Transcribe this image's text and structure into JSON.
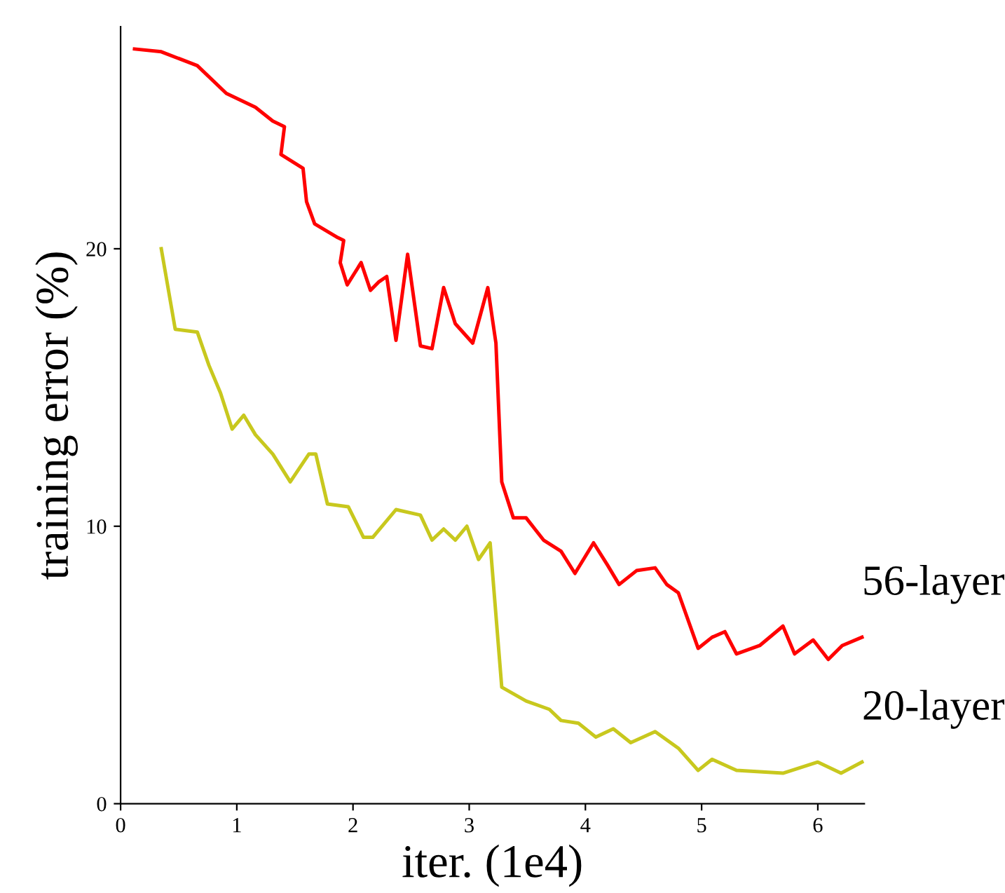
{
  "chart_data": {
    "type": "line",
    "xlabel": "iter. (1e4)",
    "ylabel": "training error (%)",
    "xlim": [
      0,
      6.4
    ],
    "xticks": [
      0,
      1,
      2,
      3,
      4,
      5,
      6
    ],
    "ylim": [
      0,
      28
    ],
    "yticks": [
      0,
      10,
      20
    ],
    "grid": false,
    "legend": false,
    "marker": "none",
    "line_style": "solid",
    "series": [
      {
        "name": "56-layer",
        "color": "#ff0000",
        "x": [
          0.12,
          0.35,
          0.66,
          0.91,
          1.16,
          1.31,
          1.41,
          1.38,
          1.57,
          1.6,
          1.67,
          1.87,
          1.92,
          1.89,
          1.95,
          2.07,
          2.15,
          2.22,
          2.29,
          2.37,
          2.47,
          2.58,
          2.68,
          2.78,
          2.88,
          3.03,
          3.16,
          3.23,
          3.28,
          3.38,
          3.49,
          3.64,
          3.79,
          3.91,
          4.07,
          4.19,
          4.29,
          4.44,
          4.6,
          4.7,
          4.8,
          4.97,
          5.09,
          5.2,
          5.3,
          5.5,
          5.7,
          5.8,
          5.96,
          6.09,
          6.21,
          6.38
        ],
        "values": [
          27.2,
          27.1,
          26.6,
          25.6,
          25.1,
          24.6,
          24.4,
          23.4,
          22.9,
          21.7,
          20.9,
          20.4,
          20.3,
          19.5,
          18.7,
          19.5,
          18.5,
          18.8,
          19.0,
          16.7,
          19.8,
          16.5,
          16.4,
          18.6,
          17.3,
          16.6,
          18.6,
          16.6,
          11.6,
          10.3,
          10.3,
          9.5,
          9.1,
          8.3,
          9.4,
          8.6,
          7.9,
          8.4,
          8.5,
          7.9,
          7.6,
          5.6,
          6.0,
          6.2,
          5.4,
          5.7,
          6.4,
          5.4,
          5.9,
          5.2,
          5.7,
          6.0
        ]
      },
      {
        "name": "20-layer",
        "color": "#c8c81e",
        "x": [
          0.35,
          0.47,
          0.66,
          0.76,
          0.86,
          0.96,
          1.06,
          1.16,
          1.31,
          1.46,
          1.62,
          1.68,
          1.78,
          1.96,
          2.09,
          2.17,
          2.37,
          2.58,
          2.68,
          2.78,
          2.88,
          2.98,
          3.08,
          3.18,
          3.28,
          3.49,
          3.69,
          3.79,
          3.94,
          4.09,
          4.24,
          4.39,
          4.6,
          4.8,
          4.97,
          5.09,
          5.3,
          5.7,
          6.0,
          6.2,
          6.38
        ],
        "values": [
          20,
          17.1,
          17.0,
          15.8,
          14.8,
          13.5,
          14.0,
          13.3,
          12.6,
          11.6,
          12.6,
          12.6,
          10.8,
          10.7,
          9.6,
          9.6,
          10.6,
          10.4,
          9.5,
          9.9,
          9.5,
          10.0,
          8.8,
          9.4,
          4.2,
          3.7,
          3.4,
          3.0,
          2.9,
          2.4,
          2.7,
          2.2,
          2.6,
          2.0,
          1.2,
          1.6,
          1.2,
          1.1,
          1.5,
          1.1,
          1.5
        ]
      }
    ]
  }
}
